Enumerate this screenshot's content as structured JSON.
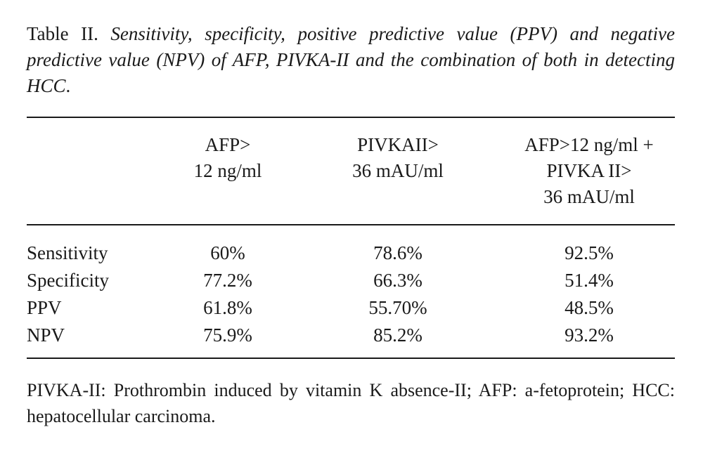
{
  "caption": {
    "label": "Table II. ",
    "text": "Sensitivity, specificity, positive predictive value (PPV) and negative predictive value (NPV) of AFP, PIVKA-II and the combination of both in detecting HCC",
    "end": "."
  },
  "table": {
    "headers": [
      [
        "AFP>",
        "12 ng/ml"
      ],
      [
        "PIVKAII>",
        "36 mAU/ml"
      ],
      [
        "AFP>12 ng/ml +",
        "PIVKA II>",
        "36 mAU/ml"
      ]
    ],
    "rows": [
      {
        "label": "Sensitivity",
        "values": [
          "60%",
          "78.6%",
          "92.5%"
        ]
      },
      {
        "label": "Specificity",
        "values": [
          "77.2%",
          "66.3%",
          "51.4%"
        ]
      },
      {
        "label": "PPV",
        "values": [
          "61.8%",
          "55.70%",
          "48.5%"
        ]
      },
      {
        "label": "NPV",
        "values": [
          "75.9%",
          "85.2%",
          "93.2%"
        ]
      }
    ]
  },
  "footnote": "PIVKA-II: Prothrombin induced by vitamin K absence-II; AFP: a-fetoprotein; HCC: hepatocellular carcinoma."
}
